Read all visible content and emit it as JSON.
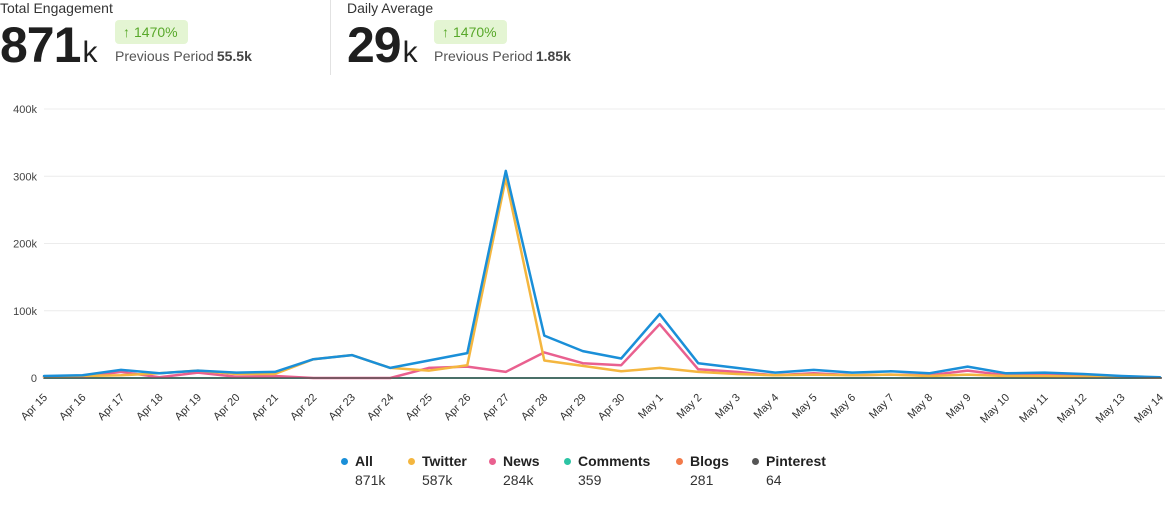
{
  "kpis": [
    {
      "label": "Total Engagement",
      "value": "871",
      "unit": "k",
      "change": "1470%",
      "previous_label": "Previous Period",
      "previous_value": "55.5k"
    },
    {
      "label": "Daily Average",
      "value": "29",
      "unit": "k",
      "change": "1470%",
      "previous_label": "Previous Period",
      "previous_value": "1.85k"
    }
  ],
  "legend": [
    {
      "name": "All",
      "total": "871k",
      "color": "#1a8fd8"
    },
    {
      "name": "Twitter",
      "total": "587k",
      "color": "#f4b63f"
    },
    {
      "name": "News",
      "total": "284k",
      "color": "#e9608f"
    },
    {
      "name": "Comments",
      "total": "359",
      "color": "#2cc4a4"
    },
    {
      "name": "Blogs",
      "total": "281",
      "color": "#f27a4a"
    },
    {
      "name": "Pinterest",
      "total": "64",
      "color": "#555555"
    }
  ],
  "chart_data": {
    "type": "line",
    "title": "",
    "xlabel": "",
    "ylabel": "",
    "ylim": [
      0,
      400000
    ],
    "yticks": [
      0,
      100000,
      200000,
      300000,
      400000
    ],
    "ytick_labels": [
      "0",
      "100k",
      "200k",
      "300k",
      "400k"
    ],
    "grid": true,
    "x": [
      "Apr 15",
      "Apr 16",
      "Apr 17",
      "Apr 18",
      "Apr 19",
      "Apr 20",
      "Apr 21",
      "Apr 22",
      "Apr 23",
      "Apr 24",
      "Apr 25",
      "Apr 26",
      "Apr 27",
      "Apr 28",
      "Apr 29",
      "Apr 30",
      "May 1",
      "May 2",
      "May 3",
      "May 4",
      "May 5",
      "May 6",
      "May 7",
      "May 8",
      "May 9",
      "May 10",
      "May 11",
      "May 12",
      "May 13",
      "May 14"
    ],
    "series": [
      {
        "name": "All",
        "color": "#1a8fd8",
        "values": [
          3000,
          4000,
          12000,
          7000,
          11000,
          8000,
          9000,
          28000,
          34000,
          15000,
          26000,
          37000,
          308000,
          63000,
          40000,
          29000,
          95000,
          22000,
          15000,
          8000,
          12000,
          8000,
          10000,
          7000,
          17000,
          7000,
          8000,
          6000,
          3000,
          1000
        ]
      },
      {
        "name": "Twitter",
        "color": "#f4b63f",
        "values": [
          2000,
          3000,
          4000,
          7000,
          11000,
          6000,
          6000,
          28000,
          34000,
          15000,
          11000,
          19000,
          297000,
          26000,
          18000,
          10000,
          15000,
          9000,
          6000,
          4000,
          5000,
          4000,
          5000,
          3000,
          5000,
          3000,
          3000,
          2000,
          1000,
          500
        ]
      },
      {
        "name": "News",
        "color": "#e9608f",
        "values": [
          1000,
          2000,
          9000,
          1000,
          8000,
          2000,
          3000,
          0,
          0,
          0,
          15000,
          17000,
          9000,
          38000,
          22000,
          19000,
          80000,
          13000,
          9000,
          4000,
          7000,
          4000,
          5000,
          4000,
          11000,
          4000,
          5000,
          3000,
          2000,
          500
        ]
      },
      {
        "name": "Comments",
        "color": "#2cc4a4",
        "values": [
          0,
          0,
          0,
          0,
          0,
          0,
          0,
          0,
          0,
          0,
          0,
          0,
          0,
          0,
          0,
          0,
          0,
          0,
          0,
          0,
          0,
          0,
          0,
          0,
          0,
          0,
          0,
          0,
          0,
          0
        ]
      },
      {
        "name": "Blogs",
        "color": "#f27a4a",
        "values": [
          0,
          0,
          0,
          0,
          0,
          0,
          0,
          0,
          0,
          0,
          0,
          0,
          0,
          0,
          0,
          0,
          0,
          0,
          0,
          0,
          0,
          0,
          0,
          0,
          0,
          0,
          0,
          0,
          0,
          0
        ]
      },
      {
        "name": "Pinterest",
        "color": "#555555",
        "values": [
          0,
          0,
          0,
          0,
          0,
          0,
          0,
          0,
          0,
          0,
          0,
          0,
          0,
          0,
          0,
          0,
          0,
          0,
          0,
          0,
          0,
          0,
          0,
          0,
          0,
          0,
          0,
          0,
          0,
          0
        ]
      }
    ]
  }
}
